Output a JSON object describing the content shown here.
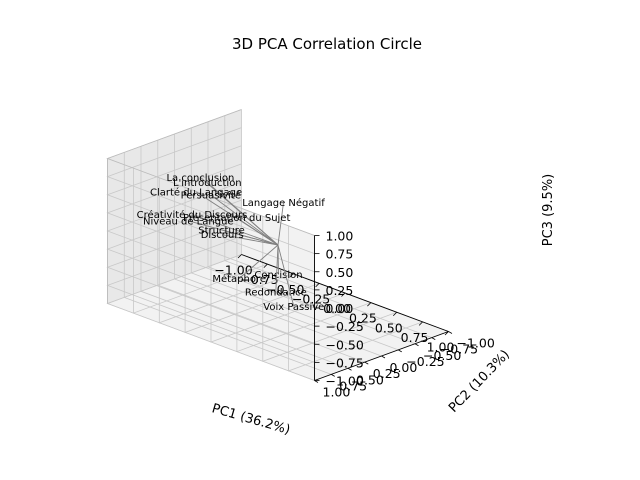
{
  "chart_data": {
    "type": "scatter",
    "subtype": "3d-loading-vectors",
    "title": "3D PCA Correlation Circle",
    "xlabel": "PC1 (36.2%)",
    "ylabel": "PC2 (10.3%)",
    "zlabel": "PC3 (9.5%)",
    "xlim": [
      -1.0,
      1.0
    ],
    "ylim": [
      -1.0,
      1.0
    ],
    "zlim": [
      -1.0,
      1.0
    ],
    "x_ticks": [
      "−1.00",
      "−0.75",
      "−0.50",
      "−0.25",
      "0.00",
      "0.25",
      "0.50",
      "0.75",
      "1.00"
    ],
    "y_ticks": [
      "−1.00",
      "−0.75",
      "−0.50",
      "−0.25",
      "0.00",
      "0.25",
      "0.50",
      "0.75",
      "1.00"
    ],
    "z_ticks": [
      "−1.00",
      "−0.75",
      "−0.50",
      "−0.25",
      "0.00",
      "0.25",
      "0.50",
      "0.75",
      "1.00"
    ],
    "grid": true,
    "vector_color": "#808080",
    "pane_color": "#f2f2f2",
    "grid_color": "#c8c8c8",
    "vectors": [
      {
        "label": "Langage Négatif",
        "x": 0.04,
        "y": -0.02,
        "z": 0.6
      },
      {
        "label": "La conclusion",
        "x": -0.84,
        "y": -0.14,
        "z": 0.44
      },
      {
        "label": "L'introduction",
        "x": -0.78,
        "y": -0.15,
        "z": 0.4
      },
      {
        "label": "Persuasivité",
        "x": -0.74,
        "y": -0.14,
        "z": 0.25
      },
      {
        "label": "Clarté du Langage",
        "x": -0.85,
        "y": -0.09,
        "z": 0.25
      },
      {
        "label": "Présentation du Sujet",
        "x": -0.47,
        "y": -0.11,
        "z": 0.09
      },
      {
        "label": "Créativité du Discours",
        "x": -0.85,
        "y": -0.03,
        "z": -0.04
      },
      {
        "label": "Niveau de Langue",
        "x": -0.86,
        "y": 0.01,
        "z": -0.12
      },
      {
        "label": "Structure",
        "x": -0.63,
        "y": -0.13,
        "z": -0.17
      },
      {
        "label": "Discours",
        "x": -0.63,
        "y": -0.14,
        "z": -0.24
      },
      {
        "label": "Concision",
        "x": 0.4,
        "y": 0.61,
        "z": 0.01
      },
      {
        "label": "Redondance",
        "x": 0.38,
        "y": 0.62,
        "z": -0.24
      },
      {
        "label": "Métaphore",
        "x": -0.44,
        "y": -0.1,
        "z": -0.73
      },
      {
        "label": "Voix Passive",
        "x": 0.12,
        "y": -0.05,
        "z": -0.8
      }
    ]
  }
}
